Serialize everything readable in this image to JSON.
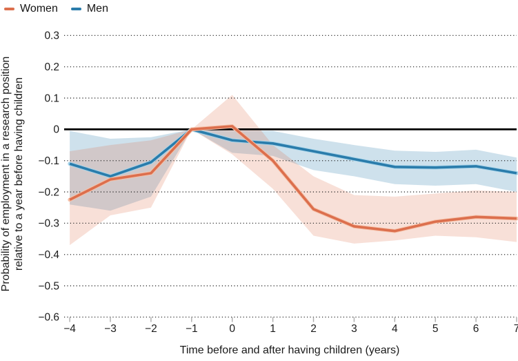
{
  "chart_data": {
    "type": "line",
    "title": "",
    "x": [
      -4,
      -3,
      -2,
      -1,
      0,
      1,
      2,
      3,
      4,
      5,
      6,
      7
    ],
    "xticks": [
      -4,
      -3,
      -2,
      -1,
      0,
      1,
      2,
      3,
      4,
      5,
      6,
      7
    ],
    "yticks": [
      0.3,
      0.2,
      0.1,
      0,
      -0.1,
      -0.2,
      -0.3,
      -0.4,
      -0.5,
      -0.6
    ],
    "xlim": [
      -4,
      7
    ],
    "ylim": [
      -0.6,
      0.3
    ],
    "xlabel": "Time before and after having children (years)",
    "ylabel": "Probability of employment in a research position relative to a year before having children",
    "ylabel_lines": [
      "Probability of employment in a research position",
      "relative to a year before having children"
    ],
    "grid": "horizontal-dotted",
    "zero_line": true,
    "legend_position": "top-left",
    "series": [
      {
        "name": "Women",
        "color": "#dc6f4d",
        "halo_color": "#f5c0a8",
        "band_color": "rgba(223,112,77,0.22)",
        "values": [
          -0.225,
          -0.16,
          -0.14,
          0,
          0.01,
          -0.1,
          -0.255,
          -0.31,
          -0.325,
          -0.295,
          -0.28,
          -0.285
        ],
        "band_upper": [
          -0.07,
          -0.05,
          -0.035,
          0,
          0.11,
          -0.05,
          -0.15,
          -0.21,
          -0.215,
          -0.205,
          -0.195,
          -0.2
        ],
        "band_lower": [
          -0.37,
          -0.275,
          -0.25,
          0,
          -0.08,
          -0.19,
          -0.34,
          -0.365,
          -0.355,
          -0.34,
          -0.345,
          -0.36
        ]
      },
      {
        "name": "Men",
        "color": "#2a7cab",
        "halo_color": "#a6d3e9",
        "band_color": "rgba(42,124,171,0.23)",
        "values": [
          -0.11,
          -0.15,
          -0.105,
          0,
          -0.035,
          -0.045,
          -0.07,
          -0.095,
          -0.12,
          -0.122,
          -0.118,
          -0.14
        ],
        "band_upper": [
          -0.005,
          -0.03,
          -0.025,
          0,
          -0.005,
          -0.005,
          -0.03,
          -0.05,
          -0.068,
          -0.072,
          -0.065,
          -0.09
        ],
        "band_lower": [
          -0.24,
          -0.26,
          -0.215,
          0,
          -0.075,
          -0.085,
          -0.13,
          -0.15,
          -0.175,
          -0.18,
          -0.175,
          -0.2
        ]
      }
    ]
  }
}
